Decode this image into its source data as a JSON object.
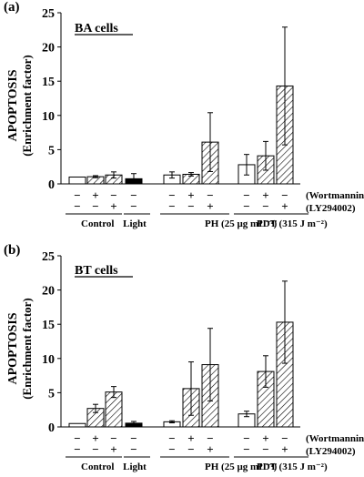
{
  "chart_data": [
    {
      "type": "bar",
      "panel_label": "(a)",
      "annotation": "BA cells",
      "ylabel": "APOPTOSIS",
      "ylabel_sub": "(Enrichment factor)",
      "ylim": [
        0,
        25
      ],
      "yticks": [
        0,
        5,
        10,
        15,
        20,
        25
      ],
      "groups": [
        {
          "label": "Control",
          "bars": [
            {
              "fill": "white",
              "value": 1.0,
              "error": 0.0,
              "w": "−",
              "l": "−"
            },
            {
              "fill": "hatch",
              "value": 1.05,
              "error": 0.15,
              "w": "+",
              "l": "−"
            },
            {
              "fill": "hatch",
              "value": 1.3,
              "error": 0.45,
              "w": "−",
              "l": "+"
            }
          ]
        },
        {
          "label": "Light",
          "bars": [
            {
              "fill": "black",
              "value": 0.75,
              "error": 0.75,
              "w": "−",
              "l": "−"
            }
          ]
        },
        {
          "label": "PH  (25 µg mL⁻¹)",
          "bars": [
            {
              "fill": "white",
              "value": 1.3,
              "error": 0.45,
              "w": "−",
              "l": "−"
            },
            {
              "fill": "hatch",
              "value": 1.4,
              "error": 0.25,
              "w": "+",
              "l": "−"
            },
            {
              "fill": "hatch",
              "value": 6.1,
              "error": 4.3,
              "w": "−",
              "l": "+"
            }
          ]
        },
        {
          "label": "PDT  (315 J m⁻²)",
          "bars": [
            {
              "fill": "white",
              "value": 2.8,
              "error": 1.5,
              "w": "−",
              "l": "−"
            },
            {
              "fill": "hatch",
              "value": 4.1,
              "error": 2.1,
              "w": "+",
              "l": "−"
            },
            {
              "fill": "hatch",
              "value": 14.3,
              "error": 8.6,
              "w": "−",
              "l": "+"
            }
          ]
        }
      ],
      "row_labels": [
        "(Wortmannin)",
        "(LY294002)"
      ]
    },
    {
      "type": "bar",
      "panel_label": "(b)",
      "annotation": "BT cells",
      "ylabel": "APOPTOSIS",
      "ylabel_sub": "(Enrichment factor)",
      "ylim": [
        0,
        25
      ],
      "yticks": [
        0,
        5,
        10,
        15,
        20,
        25
      ],
      "groups": [
        {
          "label": "Control",
          "bars": [
            {
              "fill": "white",
              "value": 0.5,
              "error": 0.0,
              "w": "−",
              "l": "−"
            },
            {
              "fill": "hatch",
              "value": 2.7,
              "error": 0.6,
              "w": "+",
              "l": "−"
            },
            {
              "fill": "hatch",
              "value": 5.1,
              "error": 0.8,
              "w": "−",
              "l": "+"
            }
          ]
        },
        {
          "label": "Light",
          "bars": [
            {
              "fill": "black",
              "value": 0.55,
              "error": 0.25,
              "w": "−",
              "l": "−"
            }
          ]
        },
        {
          "label": "PH  (25 µg mL⁻¹)",
          "bars": [
            {
              "fill": "white",
              "value": 0.75,
              "error": 0.15,
              "w": "−",
              "l": "−"
            },
            {
              "fill": "hatch",
              "value": 5.6,
              "error": 3.9,
              "w": "+",
              "l": "−"
            },
            {
              "fill": "hatch",
              "value": 9.1,
              "error": 5.3,
              "w": "−",
              "l": "+"
            }
          ]
        },
        {
          "label": "PDT  (315 J m⁻²)",
          "bars": [
            {
              "fill": "white",
              "value": 1.9,
              "error": 0.4,
              "w": "−",
              "l": "−"
            },
            {
              "fill": "hatch",
              "value": 8.1,
              "error": 2.3,
              "w": "+",
              "l": "−"
            },
            {
              "fill": "hatch",
              "value": 15.3,
              "error": 6.0,
              "w": "−",
              "l": "+"
            }
          ]
        }
      ],
      "row_labels": [
        "(Wortmannin)",
        "(LY294002)"
      ]
    }
  ]
}
